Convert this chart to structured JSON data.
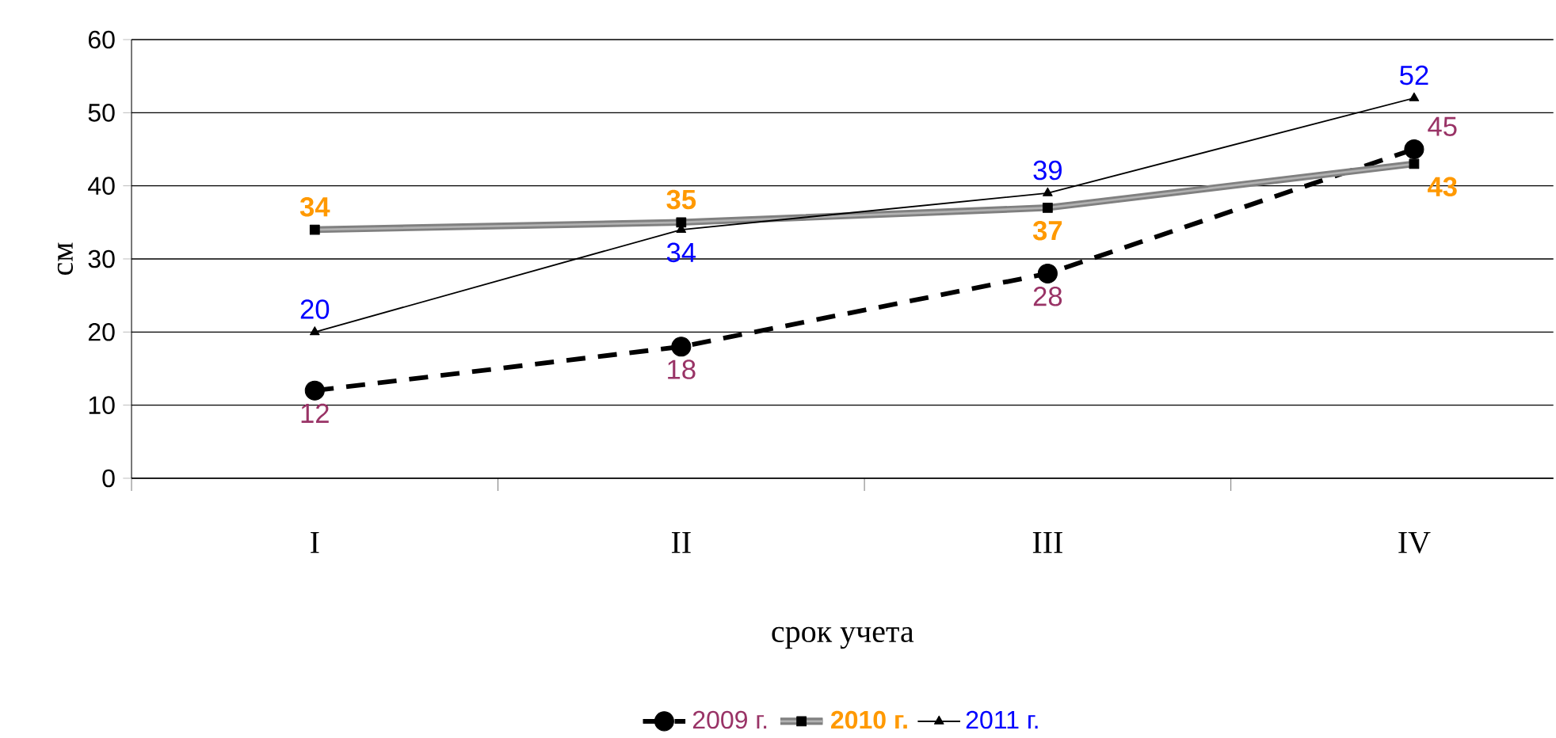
{
  "chart_data": {
    "type": "line",
    "xlabel": "срок учета",
    "ylabel": "см",
    "categories": [
      "I",
      "II",
      "III",
      "IV"
    ],
    "series": [
      {
        "name": "2009 г.",
        "color": "#000000",
        "values": [
          12,
          18,
          28,
          45
        ],
        "marker": "circle",
        "line_style": "dashed"
      },
      {
        "name": "2010 г.",
        "color": "#808080",
        "values": [
          34,
          35,
          37,
          43
        ],
        "marker": "square",
        "line_style": "solid"
      },
      {
        "name": "2011 г.",
        "color": "#000000",
        "values": [
          20,
          34,
          39,
          52
        ],
        "marker": "triangle",
        "line_style": "solid"
      }
    ],
    "ylim": [
      0,
      60
    ],
    "yticks": [
      0,
      10,
      20,
      30,
      40,
      50,
      60
    ],
    "grid": "y",
    "legend": "bottom",
    "data_labels": true
  }
}
